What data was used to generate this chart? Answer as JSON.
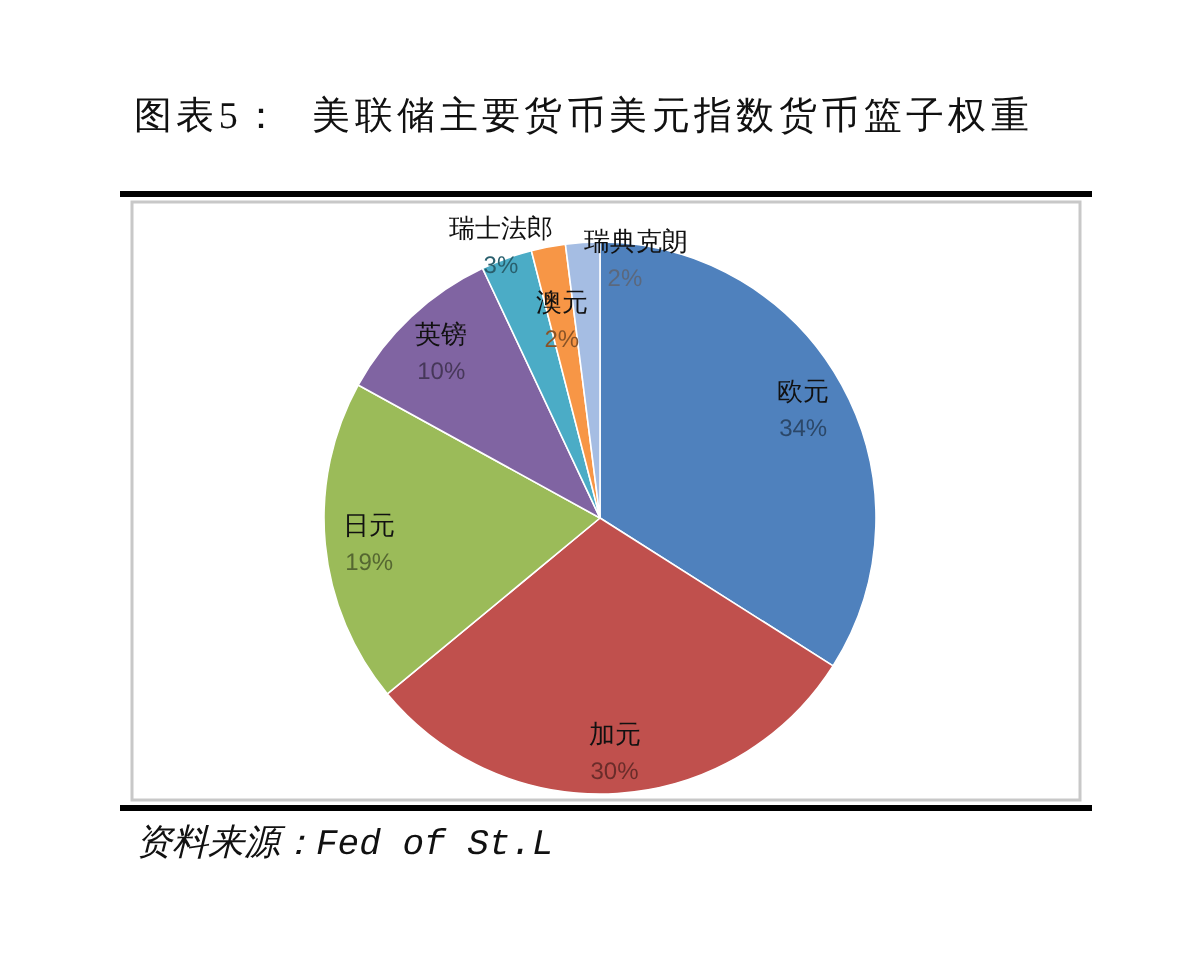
{
  "chart_data": {
    "type": "pie",
    "title": "图表5：  美联储主要货币美元指数货币篮子权重",
    "categories": [
      "欧元",
      "加元",
      "日元",
      "英镑",
      "瑞士法郎",
      "澳元",
      "瑞典克朗"
    ],
    "values": [
      34,
      30,
      19,
      10,
      3,
      2,
      2
    ],
    "value_labels": [
      "34%",
      "30%",
      "19%",
      "10%",
      "3%",
      "2%",
      "2%"
    ],
    "colors": [
      "#4f81bd",
      "#c0504d",
      "#9bbb59",
      "#8064a2",
      "#4bacc6",
      "#f79646",
      "#a5bde3"
    ],
    "annotations": [
      "资料来源：Fed of St.L"
    ]
  }
}
